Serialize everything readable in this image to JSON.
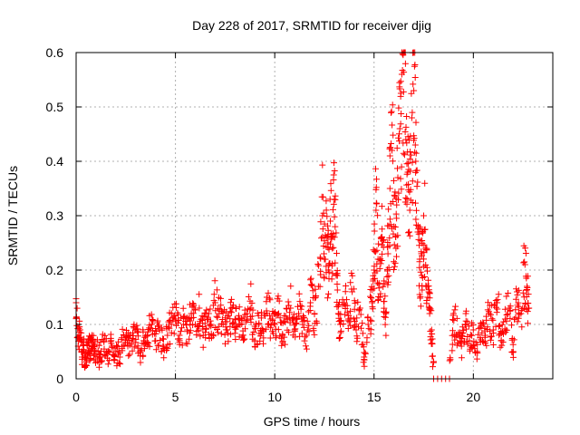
{
  "chart_data": {
    "type": "scatter",
    "title": "Day 228 of 2017, SRMTID for receiver djig",
    "xlabel": "GPS time / hours",
    "ylabel": "SRMTID / TECUs",
    "xlim": [
      0,
      24
    ],
    "ylim": [
      0,
      0.6
    ],
    "xticks": [
      0,
      5,
      10,
      15,
      20
    ],
    "yticks": [
      0,
      0.1,
      0.2,
      0.3,
      0.4,
      0.5,
      0.6
    ],
    "xtick_labels": [
      "0",
      "5",
      "10",
      "15",
      "20"
    ],
    "ytick_labels": [
      "0",
      "0.1",
      "0.2",
      "0.3",
      "0.4",
      "0.5",
      "0.6"
    ],
    "grid": true,
    "marker": "+",
    "color": "#ff0000",
    "series": [
      {
        "name": "SRMTID",
        "x": [
          0.0,
          0.1,
          0.2,
          0.3,
          0.4,
          0.5,
          0.6,
          0.7,
          0.8,
          0.9,
          1.0,
          1.2,
          1.4,
          1.6,
          1.8,
          2.0,
          2.2,
          2.4,
          2.6,
          2.8,
          3.0,
          3.2,
          3.4,
          3.6,
          3.8,
          4.0,
          4.2,
          4.4,
          4.6,
          4.8,
          5.0,
          5.2,
          5.4,
          5.6,
          5.8,
          6.0,
          6.2,
          6.4,
          6.6,
          6.8,
          7.0,
          7.2,
          7.4,
          7.6,
          7.8,
          8.0,
          8.2,
          8.4,
          8.6,
          8.8,
          9.0,
          9.2,
          9.4,
          9.6,
          9.8,
          10.0,
          10.2,
          10.4,
          10.6,
          10.8,
          11.0,
          11.2,
          11.4,
          11.6,
          11.8,
          12.0,
          12.2,
          12.4,
          12.5,
          12.6,
          12.7,
          12.8,
          12.9,
          13.0,
          13.1,
          13.2,
          13.3,
          13.5,
          13.7,
          13.9,
          14.1,
          14.3,
          14.5,
          14.7,
          14.9,
          15.0,
          15.1,
          15.2,
          15.3,
          15.4,
          15.5,
          15.6,
          15.7,
          15.8,
          15.9,
          16.0,
          16.1,
          16.2,
          16.3,
          16.4,
          16.5,
          16.6,
          16.7,
          16.8,
          16.9,
          17.0,
          17.1,
          17.2,
          17.3,
          17.4,
          17.5,
          17.6,
          17.7,
          17.8,
          17.9,
          18.0,
          18.2,
          18.4,
          18.6,
          18.8,
          19.0,
          19.2,
          19.4,
          19.6,
          19.8,
          20.0,
          20.2,
          20.4,
          20.6,
          20.8,
          21.0,
          21.2,
          21.4,
          21.6,
          21.8,
          22.0,
          22.2,
          22.4,
          22.6,
          22.7,
          22.8
        ],
        "y": [
          0.14,
          0.06,
          0.09,
          0.04,
          0.05,
          0.03,
          0.07,
          0.05,
          0.08,
          0.06,
          0.05,
          0.04,
          0.07,
          0.05,
          0.06,
          0.05,
          0.04,
          0.08,
          0.06,
          0.07,
          0.09,
          0.05,
          0.07,
          0.08,
          0.1,
          0.07,
          0.09,
          0.06,
          0.08,
          0.1,
          0.11,
          0.08,
          0.1,
          0.09,
          0.12,
          0.1,
          0.13,
          0.08,
          0.11,
          0.1,
          0.14,
          0.12,
          0.1,
          0.09,
          0.13,
          0.11,
          0.1,
          0.08,
          0.12,
          0.13,
          0.07,
          0.1,
          0.09,
          0.15,
          0.11,
          0.1,
          0.12,
          0.08,
          0.11,
          0.13,
          0.09,
          0.12,
          0.1,
          0.08,
          0.14,
          0.12,
          0.17,
          0.3,
          0.22,
          0.26,
          0.2,
          0.29,
          0.24,
          0.33,
          0.19,
          0.12,
          0.1,
          0.14,
          0.11,
          0.16,
          0.09,
          0.13,
          0.04,
          0.1,
          0.14,
          0.2,
          0.31,
          0.22,
          0.15,
          0.26,
          0.18,
          0.12,
          0.23,
          0.35,
          0.42,
          0.28,
          0.24,
          0.37,
          0.46,
          0.56,
          0.6,
          0.44,
          0.38,
          0.31,
          0.48,
          0.53,
          0.4,
          0.27,
          0.22,
          0.19,
          0.3,
          0.24,
          0.15,
          0.12,
          0.09,
          0.0,
          0.0,
          0.0,
          0.0,
          0.0,
          0.12,
          0.08,
          0.06,
          0.1,
          0.07,
          0.09,
          0.05,
          0.1,
          0.08,
          0.12,
          0.09,
          0.14,
          0.07,
          0.11,
          0.13,
          0.05,
          0.16,
          0.12,
          0.21,
          0.17,
          0.13
        ],
        "cloud_hint": "dense point cloud, roughly 0.03–0.15 TECU baseline with peaks near 13 h (~0.33) and 16.5 h (~0.60); zero values around 18–18.8 h"
      }
    ]
  }
}
